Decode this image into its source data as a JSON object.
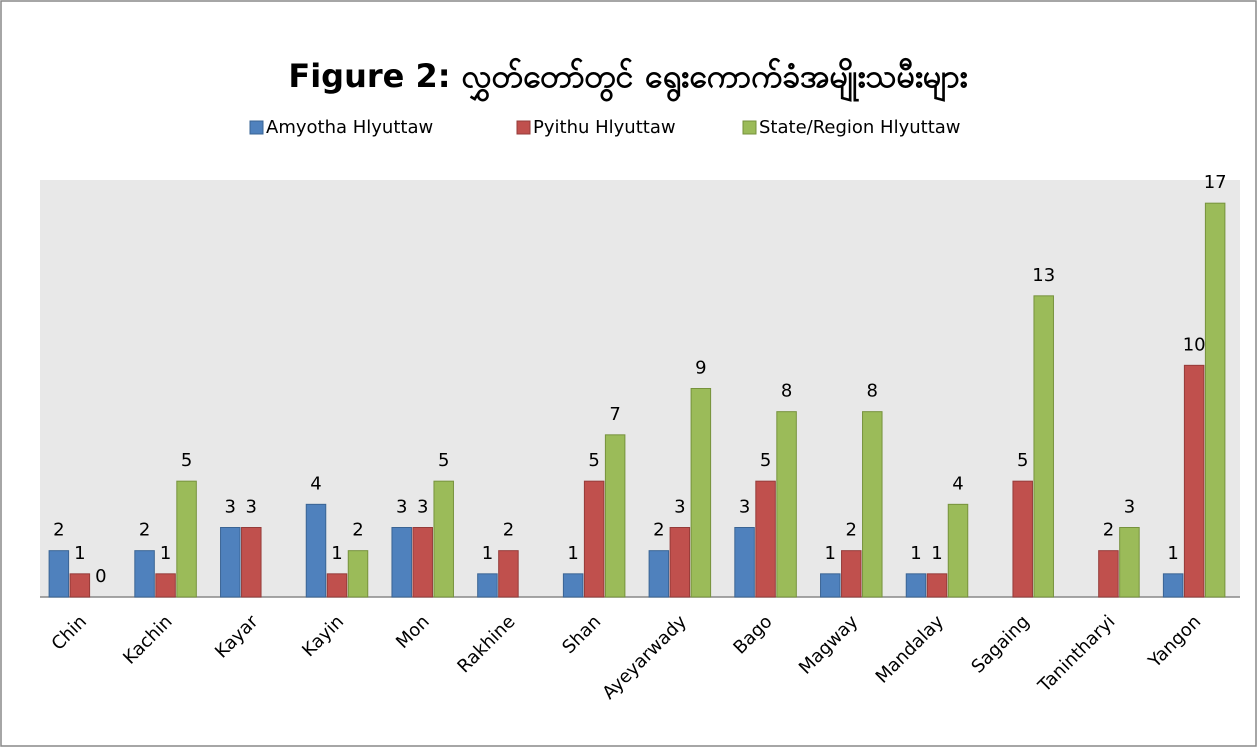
{
  "chart_data": {
    "type": "bar",
    "title": "Figure 2:  လွှတ်တော်တွင် ရွေးကောက်ခံအမျိုးသမီးများ",
    "categories": [
      "Chin",
      "Kachin",
      "Kayar",
      "Kayin",
      "Mon",
      "Rakhine",
      "Shan",
      "Ayeyarwady",
      "Bago",
      "Magway",
      "Mandalay",
      "Sagaing",
      "Tanintharyi",
      "Yangon"
    ],
    "series": [
      {
        "name": "Amyotha Hlyuttaw",
        "color": "#4f81bd",
        "values": [
          2,
          2,
          3,
          4,
          3,
          1,
          1,
          2,
          3,
          1,
          1,
          null,
          null,
          1
        ]
      },
      {
        "name": "Pyithu Hlyuttaw",
        "color": "#c0504d",
        "values": [
          1,
          1,
          3,
          1,
          3,
          2,
          5,
          3,
          5,
          2,
          1,
          5,
          2,
          10
        ]
      },
      {
        "name": "State/Region Hlyuttaw",
        "color": "#9bbb59",
        "values": [
          0,
          5,
          null,
          2,
          5,
          null,
          7,
          9,
          8,
          8,
          4,
          13,
          3,
          17
        ]
      }
    ],
    "ylim": [
      0,
      18
    ],
    "legend": "top",
    "grid": false
  }
}
